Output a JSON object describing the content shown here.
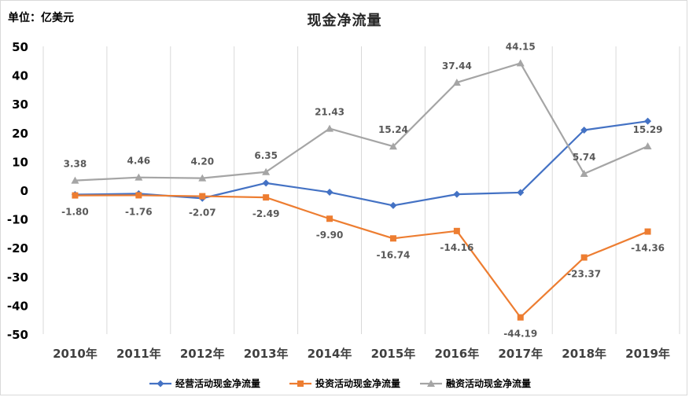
{
  "unit_label": "单位：亿美元",
  "chart_data": {
    "type": "line",
    "title": "现金净流量",
    "categories": [
      "2010年",
      "2011年",
      "2012年",
      "2013年",
      "2014年",
      "2015年",
      "2016年",
      "2017年",
      "2018年",
      "2019年"
    ],
    "ylim": [
      -50,
      50
    ],
    "yticks": [
      50,
      40,
      30,
      20,
      10,
      0,
      -10,
      -20,
      -30,
      -40,
      -50
    ],
    "grid": {
      "vertical": true,
      "horizontal": false
    },
    "legend_position": "bottom",
    "series": [
      {
        "name": "经营活动现金净流量",
        "color": "#4472c4",
        "marker": "diamond",
        "values": [
          -1.5,
          -1.2,
          -2.8,
          2.5,
          -0.7,
          -5.3,
          -1.4,
          -0.8,
          20.9,
          24.0
        ],
        "labels": []
      },
      {
        "name": "投资活动现金净流量",
        "color": "#ed7d31",
        "marker": "square",
        "values": [
          -1.8,
          -1.76,
          -2.07,
          -2.49,
          -9.9,
          -16.74,
          -14.16,
          -44.19,
          -23.37,
          -14.36
        ],
        "labels": [
          "-1.80",
          "-1.76",
          "-2.07",
          "-2.49",
          "-9.90",
          "-16.74",
          "-14.16",
          "-44.19",
          "-23.37",
          "-14.36"
        ]
      },
      {
        "name": "融资活动现金净流量",
        "color": "#a5a5a5",
        "marker": "triangle",
        "values": [
          3.38,
          4.46,
          4.2,
          6.35,
          21.43,
          15.24,
          37.44,
          44.15,
          5.74,
          15.29
        ],
        "labels": [
          "3.38",
          "4.46",
          "4.20",
          "6.35",
          "21.43",
          "15.24",
          "37.44",
          "44.15",
          "5.74",
          "15.29"
        ]
      }
    ]
  }
}
